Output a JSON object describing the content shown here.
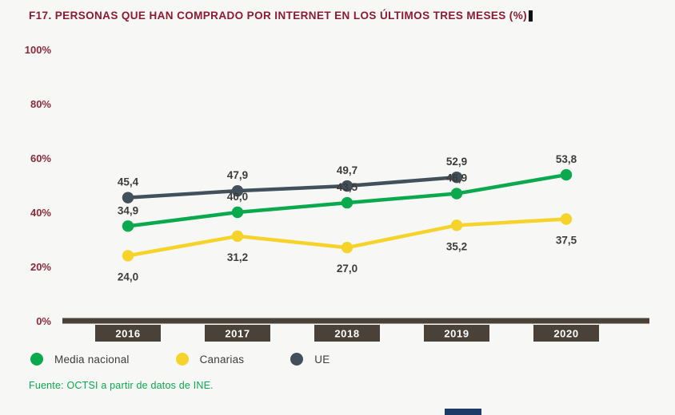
{
  "header": {
    "title": "F17. PERSONAS QUE HAN COMPRADO POR INTERNET EN LOS ÚLTIMOS TRES MESES (%)"
  },
  "footer": {
    "source": "Fuente: OCTSI a partir de datos de INE."
  },
  "legend": {
    "items": [
      {
        "label": "Media nacional",
        "color": "#0aa94e"
      },
      {
        "label": "Canarias",
        "color": "#f6d32b"
      },
      {
        "label": "UE",
        "color": "#41505a"
      }
    ]
  },
  "chart_data": {
    "type": "line",
    "title": "F17. Personas que han comprado por internet en los últimos tres meses (%)",
    "categories": [
      "2016",
      "2017",
      "2018",
      "2019",
      "2020"
    ],
    "series": [
      {
        "name": "Media nacional",
        "color": "#0aa94e",
        "values": [
          34.9,
          40.0,
          43.5,
          46.9,
          53.8
        ],
        "labels": [
          "34,9",
          "40,0",
          "43,5",
          "46,9",
          "53,8"
        ],
        "label_position": "above"
      },
      {
        "name": "Canarias",
        "color": "#f6d32b",
        "values": [
          24.0,
          31.2,
          27.0,
          35.2,
          37.5
        ],
        "labels": [
          "24,0",
          "31,2",
          "27,0",
          "35,2",
          "37,5"
        ],
        "label_position": "below"
      },
      {
        "name": "UE",
        "color": "#41505a",
        "values": [
          45.4,
          47.9,
          49.7,
          52.9,
          null
        ],
        "labels": [
          "45,4",
          "47,9",
          "49,7",
          "52,9",
          ""
        ],
        "label_position": "above"
      }
    ],
    "ylim": [
      0,
      100
    ],
    "yticks": [
      0,
      20,
      40,
      60,
      80,
      100
    ],
    "ytick_labels": [
      "0%",
      "20%",
      "40%",
      "60%",
      "80%",
      "100%"
    ],
    "grid": false,
    "legend_position": "bottom",
    "xlabel": "",
    "ylabel": ""
  },
  "colors": {
    "background": "#f7f7f6",
    "title": "#8e1a32",
    "axis_tick": "#8a2b3a",
    "axis_bar": "#4a4139",
    "year_box": "#4a4139",
    "year_text": "#ffffff",
    "data_label": "#3c3c3b",
    "source": "#0aa94e",
    "page_bar": "#1e3a66",
    "cursor": "#111111"
  }
}
